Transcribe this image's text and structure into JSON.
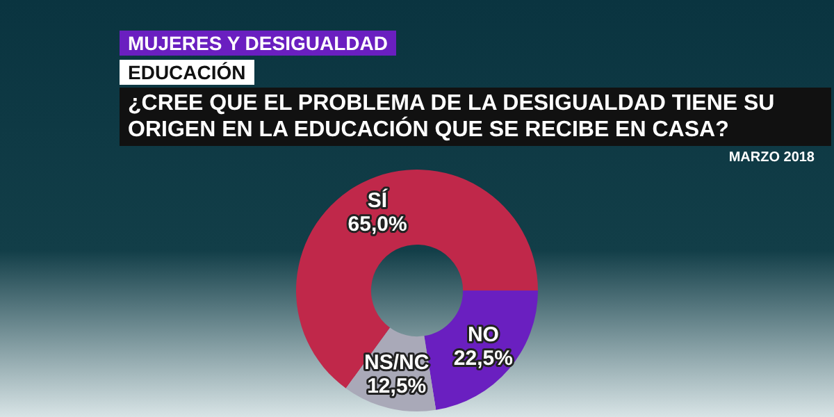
{
  "chart_data": {
    "type": "donut",
    "subtitle": "MUJERES Y DESIGUALDAD",
    "title": "¿CREE QUE EL PROBLEMA DE LA DESIGUALDAD TIENE SU ORIGEN EN LA EDUCACIÓN QUE SE RECIBE EN CASA?",
    "annotations": [
      "EDUCACIÓN",
      "MARZO 2018"
    ],
    "categories": [
      "SÍ",
      "NO",
      "NS/NC"
    ],
    "values": [
      65,
      22.5,
      12.5
    ],
    "value_labels": [
      "65,0%",
      "22,5%",
      "12,5%"
    ],
    "colors": [
      "#c0284a",
      "#6a1fc0",
      "#a9a9b8"
    ],
    "legend": false
  }
}
